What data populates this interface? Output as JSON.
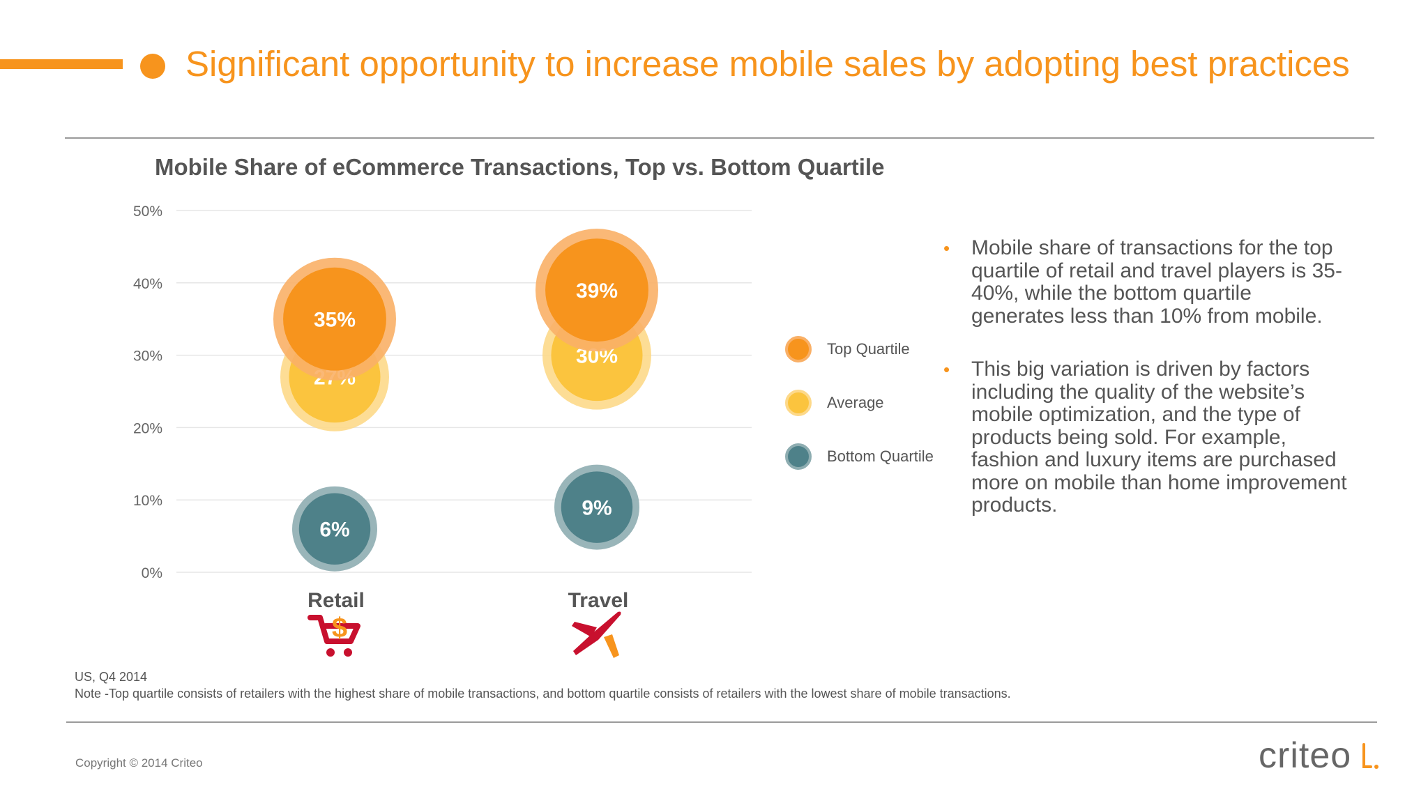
{
  "slide": {
    "title": "Significant opportunity to increase mobile sales by adopting best practices"
  },
  "chart_data": {
    "type": "bubble",
    "title": "Mobile Share of eCommerce Transactions, Top vs. Bottom Quartile",
    "xlabel": "",
    "ylabel": "",
    "ylim": [
      0,
      50
    ],
    "yticks": [
      "0%",
      "10%",
      "20%",
      "30%",
      "40%",
      "50%"
    ],
    "yticks_values": [
      0,
      10,
      20,
      30,
      40,
      50
    ],
    "grid": true,
    "legend_position": "right",
    "categories": [
      "Retail",
      "Travel"
    ],
    "series": [
      {
        "name": "Top Quartile",
        "values": [
          35,
          39
        ],
        "labels": [
          "35%",
          "39%"
        ],
        "color": "#f7941d",
        "halo": "#f9b067"
      },
      {
        "name": "Average",
        "values": [
          27,
          30
        ],
        "labels": [
          "27%",
          "30%"
        ],
        "color": "#fbc43e",
        "halo": "#fdd98a"
      },
      {
        "name": "Bottom Quartile",
        "values": [
          6,
          9
        ],
        "labels": [
          "6%",
          "9%"
        ],
        "color": "#4e8189",
        "halo": "#8eadb1"
      }
    ]
  },
  "category_icons": [
    "shopping-cart-dollar-icon",
    "airplane-icon"
  ],
  "legend": [
    {
      "label": "Top Quartile",
      "color": "#f7941d"
    },
    {
      "label": "Average",
      "color": "#fbc43e"
    },
    {
      "label": "Bottom Quartile",
      "color": "#4e8189"
    }
  ],
  "bullets": [
    "Mobile share of transactions for the top quartile of retail and travel players is 35-40%, while the bottom quartile generates less than 10% from mobile.",
    "This big variation is driven by factors including the quality of the website’s mobile optimization, and the type of products being sold. For example, fashion and luxury items are purchased more on mobile than home improvement products."
  ],
  "footnote": {
    "source": "US, Q4 2014",
    "note": "Note -Top quartile consists of retailers with the highest share of mobile transactions, and bottom quartile consists of retailers with the lowest share of mobile transactions."
  },
  "copyright": "Copyright © 2014 Criteo",
  "logo": "criteo"
}
